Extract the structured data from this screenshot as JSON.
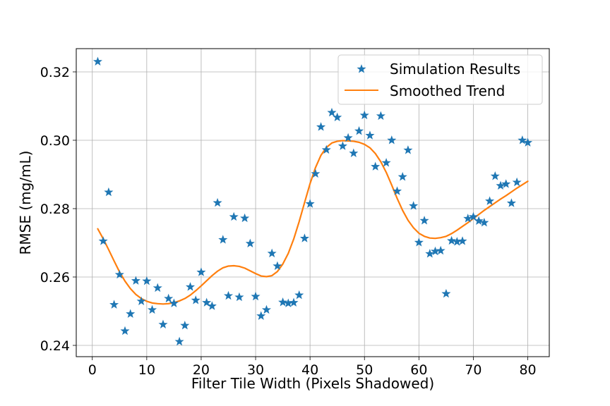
{
  "chart_data": {
    "type": "scatter",
    "title": "",
    "xlabel": "Filter Tile Width (Pixels Shadowed)",
    "ylabel": "RMSE (mg/mL)",
    "xlim": [
      -2.95,
      83.95
    ],
    "ylim": [
      0.2367,
      0.3268
    ],
    "xticks": [
      0,
      10,
      20,
      30,
      40,
      50,
      60,
      70,
      80
    ],
    "yticks": [
      0.24,
      0.26,
      0.28,
      0.3,
      0.32
    ],
    "ytick_labels": [
      "0.24",
      "0.26",
      "0.28",
      "0.30",
      "0.32"
    ],
    "grid": true,
    "legend_position": "top-right",
    "series": [
      {
        "name": "Simulation Results",
        "kind": "scatter",
        "marker": "star",
        "color": "#1f77b4",
        "x": [
          1,
          2,
          3,
          4,
          5,
          6,
          7,
          8,
          9,
          10,
          11,
          12,
          13,
          14,
          15,
          16,
          17,
          18,
          19,
          20,
          21,
          22,
          23,
          24,
          25,
          26,
          27,
          28,
          29,
          30,
          31,
          32,
          33,
          34,
          35,
          36,
          37,
          38,
          39,
          40,
          41,
          42,
          43,
          44,
          45,
          46,
          47,
          48,
          49,
          50,
          51,
          52,
          53,
          54,
          55,
          56,
          57,
          58,
          59,
          60,
          61,
          62,
          63,
          64,
          65,
          66,
          67,
          68,
          69,
          70,
          71,
          72,
          73,
          74,
          75,
          76,
          77,
          78,
          79,
          80
        ],
        "y": [
          0.323,
          0.2705,
          0.2848,
          0.2519,
          0.2607,
          0.2442,
          0.2492,
          0.2589,
          0.2529,
          0.2588,
          0.2504,
          0.2568,
          0.2461,
          0.2537,
          0.2523,
          0.2411,
          0.2458,
          0.2571,
          0.2532,
          0.2614,
          0.2525,
          0.2515,
          0.2817,
          0.2709,
          0.2545,
          0.2776,
          0.2541,
          0.2772,
          0.2698,
          0.2543,
          0.2486,
          0.2504,
          0.2669,
          0.2632,
          0.2526,
          0.2523,
          0.2525,
          0.2547,
          0.2713,
          0.2814,
          0.2902,
          0.3039,
          0.2972,
          0.3081,
          0.3067,
          0.2983,
          0.3007,
          0.2962,
          0.3027,
          0.3073,
          0.3014,
          0.2923,
          0.3071,
          0.2934,
          0.3,
          0.2851,
          0.2893,
          0.2971,
          0.2808,
          0.2701,
          0.2765,
          0.2668,
          0.2675,
          0.2677,
          0.2551,
          0.2706,
          0.2703,
          0.2705,
          0.2771,
          0.2776,
          0.2764,
          0.2759,
          0.2822,
          0.2895,
          0.2867,
          0.2872,
          0.2816,
          0.2877,
          0.3,
          0.2993
        ]
      },
      {
        "name": "Smoothed Trend",
        "kind": "line",
        "color": "#ff7f0e",
        "x": [
          1,
          2,
          3,
          4,
          5,
          6,
          7,
          8,
          9,
          10,
          11,
          12,
          13,
          14,
          15,
          16,
          17,
          18,
          19,
          20,
          21,
          22,
          23,
          24,
          25,
          26,
          27,
          28,
          29,
          30,
          31,
          32,
          33,
          34,
          35,
          36,
          37,
          38,
          39,
          40,
          41,
          42,
          43,
          44,
          45,
          46,
          47,
          48,
          49,
          50,
          51,
          52,
          53,
          54,
          55,
          56,
          57,
          58,
          59,
          60,
          61,
          62,
          63,
          64,
          65,
          66,
          67,
          68,
          69,
          70,
          71,
          72,
          73,
          74,
          75,
          76,
          77,
          78,
          79,
          80
        ],
        "y": [
          0.2741,
          0.2712,
          0.268,
          0.2647,
          0.2615,
          0.2588,
          0.2566,
          0.2549,
          0.2537,
          0.2529,
          0.2524,
          0.2522,
          0.2521,
          0.2522,
          0.2525,
          0.253,
          0.2537,
          0.2547,
          0.256,
          0.2574,
          0.2589,
          0.2604,
          0.2617,
          0.2627,
          0.2632,
          0.2633,
          0.2631,
          0.2626,
          0.2618,
          0.261,
          0.2603,
          0.2601,
          0.2604,
          0.2616,
          0.2638,
          0.2669,
          0.2711,
          0.2762,
          0.2818,
          0.2873,
          0.292,
          0.2956,
          0.2979,
          0.2992,
          0.2997,
          0.2999,
          0.2998,
          0.2997,
          0.2994,
          0.2988,
          0.2978,
          0.2961,
          0.2937,
          0.2906,
          0.2869,
          0.283,
          0.2795,
          0.2766,
          0.2744,
          0.2728,
          0.2719,
          0.2714,
          0.2713,
          0.2715,
          0.2719,
          0.2727,
          0.2737,
          0.2748,
          0.2759,
          0.2771,
          0.2783,
          0.2795,
          0.2806,
          0.2817,
          0.2828,
          0.2838,
          0.2849,
          0.286,
          0.287,
          0.288
        ]
      }
    ]
  }
}
